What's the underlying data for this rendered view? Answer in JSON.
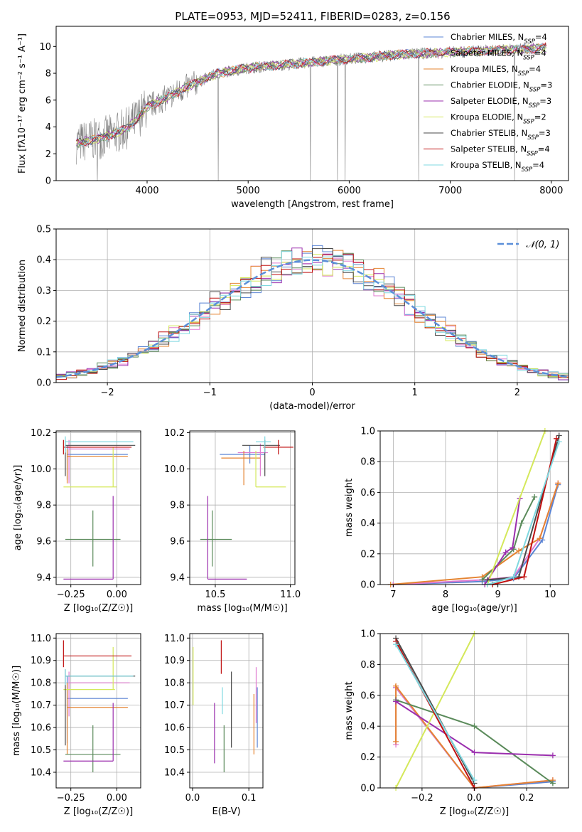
{
  "chart_data": [
    {
      "type": "line",
      "id": "spectrum",
      "title": "PLATE=0953, MJD=52411, FIBERID=0283, z=0.156",
      "xlabel": "wavelength [Angstrom, rest frame]",
      "ylabel": "Flux [fλ10⁻¹⁷ erg cm⁻² s⁻¹ A⁻¹]",
      "xlim": [
        3100,
        8170
      ],
      "ylim": [
        0,
        11.5
      ],
      "xticks": [
        4000,
        5000,
        6000,
        7000,
        8000
      ],
      "yticks": [
        0,
        2,
        4,
        6,
        8,
        10
      ],
      "legend_position": "right",
      "data_color": "#808080",
      "data_anchors": [
        [
          3300,
          2.8
        ],
        [
          3500,
          3.1
        ],
        [
          3650,
          3.4
        ],
        [
          3800,
          3.9
        ],
        [
          3900,
          4.6
        ],
        [
          4000,
          5.5
        ],
        [
          4200,
          6.2
        ],
        [
          4400,
          7.0
        ],
        [
          4700,
          8.0
        ],
        [
          5000,
          8.4
        ],
        [
          5300,
          8.6
        ],
        [
          5600,
          8.8
        ],
        [
          5900,
          9.0
        ],
        [
          6200,
          9.2
        ],
        [
          6500,
          9.4
        ],
        [
          6800,
          9.5
        ],
        [
          7100,
          9.6
        ],
        [
          7400,
          9.7
        ],
        [
          7700,
          9.8
        ],
        [
          7950,
          9.9
        ]
      ],
      "series": [
        {
          "name": "Chabrier MILES, N",
          "sub": "SSP",
          "suffix": "=4",
          "color": "#5b84d4"
        },
        {
          "name": "Salpeter MILES, N",
          "sub": "SSP",
          "suffix": "=4",
          "color": "#e07bd0"
        },
        {
          "name": "Kroupa MILES, N",
          "sub": "SSP",
          "suffix": "=4",
          "color": "#e58432"
        },
        {
          "name": "Chabrier ELODIE, N",
          "sub": "SSP",
          "suffix": "=3",
          "color": "#5a8a5a"
        },
        {
          "name": "Salpeter ELODIE, N",
          "sub": "SSP",
          "suffix": "=3",
          "color": "#9b2fae"
        },
        {
          "name": "Kroupa ELODIE, N",
          "sub": "SSP",
          "suffix": "=2",
          "color": "#d4e85a"
        },
        {
          "name": "Chabrier STELIB, N",
          "sub": "SSP",
          "suffix": "=3",
          "color": "#4a4a4a"
        },
        {
          "name": "Salpeter STELIB, N",
          "sub": "SSP",
          "suffix": "=4",
          "color": "#c01010"
        },
        {
          "name": "Kroupa STELIB, N",
          "sub": "SSP",
          "suffix": "=4",
          "color": "#7fd8e0"
        }
      ]
    },
    {
      "type": "histogram",
      "id": "residuals",
      "xlabel": "(data-model)/error",
      "ylabel": "Normed distribution",
      "xlim": [
        -2.5,
        2.5
      ],
      "ylim": [
        0,
        0.5
      ],
      "xticks": [
        -2,
        -1,
        0,
        1,
        2
      ],
      "yticks": [
        0.0,
        0.1,
        0.2,
        0.3,
        0.4,
        0.5
      ],
      "bin_width": 0.1,
      "legend": "𝒩(0, 1)",
      "normal_color": "#5b8fd9"
    },
    {
      "type": "errorbar",
      "id": "age-vs-z",
      "xlabel": "Z [log₁₀(Z/Z☉)]",
      "ylabel": "age  [log₁₀(age/yr)]",
      "xlim": [
        -0.33,
        0.13
      ],
      "ylim": [
        9.36,
        10.21
      ],
      "xticks": [
        -0.25,
        0.0
      ],
      "yticks": [
        9.4,
        9.6,
        9.8,
        10.0,
        10.2
      ],
      "points": [
        {
          "x": -0.27,
          "y": 10.08,
          "xerr": [
            0,
            0.33
          ],
          "yerr": [
            0.14,
            0.05
          ],
          "color": "#5b84d4"
        },
        {
          "x": -0.26,
          "y": 10.11,
          "xerr": [
            0,
            0.33
          ],
          "yerr": [
            0.19,
            0.05
          ],
          "color": "#e07bd0"
        },
        {
          "x": -0.27,
          "y": 10.07,
          "xerr": [
            0,
            0.33
          ],
          "yerr": [
            0.15,
            0.04
          ],
          "color": "#e58432"
        },
        {
          "x": -0.13,
          "y": 9.61,
          "xerr": [
            0.15,
            0.15
          ],
          "yerr": [
            0.15,
            0.16
          ],
          "color": "#5a8a5a"
        },
        {
          "x": -0.02,
          "y": 9.39,
          "xerr": [
            0.27,
            0
          ],
          "yerr": [
            0,
            0.46
          ],
          "color": "#9b2fae"
        },
        {
          "x": -0.02,
          "y": 9.9,
          "xerr": [
            0.27,
            0.02
          ],
          "yerr": [
            0,
            0.22
          ],
          "color": "#d4e85a"
        },
        {
          "x": -0.28,
          "y": 10.13,
          "xerr": [
            0,
            0.38
          ],
          "yerr": [
            0.17,
            0.03
          ],
          "color": "#4a4a4a"
        },
        {
          "x": -0.29,
          "y": 10.12,
          "xerr": [
            0,
            0.37
          ],
          "yerr": [
            0.04,
            0.04
          ],
          "color": "#c01010"
        },
        {
          "x": -0.28,
          "y": 10.15,
          "xerr": [
            0,
            0.37
          ],
          "yerr": [
            0.06,
            0.03
          ],
          "color": "#7fd8e0"
        }
      ]
    },
    {
      "type": "errorbar",
      "id": "age-vs-mass",
      "xlabel": "mass [log₁₀(M/M☉)]",
      "ylabel": "",
      "xlim": [
        10.33,
        11.03
      ],
      "ylim": [
        9.36,
        10.21
      ],
      "xticks": [
        10.5,
        11.0
      ],
      "yticks": [
        9.4,
        9.6,
        9.8,
        10.0,
        10.2
      ],
      "points": [
        {
          "x": 10.73,
          "y": 10.08,
          "xerr": [
            0.2,
            0.1
          ],
          "yerr": [
            0.05,
            0.05
          ],
          "color": "#5b84d4"
        },
        {
          "x": 10.8,
          "y": 10.09,
          "xerr": [
            0.15,
            0.05
          ],
          "yerr": [
            0.13,
            0.05
          ],
          "color": "#e07bd0"
        },
        {
          "x": 10.69,
          "y": 10.06,
          "xerr": [
            0.15,
            0.11
          ],
          "yerr": [
            0.15,
            0.04
          ],
          "color": "#e58432"
        },
        {
          "x": 10.48,
          "y": 9.61,
          "xerr": [
            0.08,
            0.13
          ],
          "yerr": [
            0.15,
            0.16
          ],
          "color": "#5a8a5a"
        },
        {
          "x": 10.45,
          "y": 9.39,
          "xerr": [
            0,
            0.26
          ],
          "yerr": [
            0,
            0.46
          ],
          "color": "#9b2fae"
        },
        {
          "x": 10.77,
          "y": 9.9,
          "xerr": [
            0,
            0.2
          ],
          "yerr": [
            0,
            0.2
          ],
          "color": "#d4e85a"
        },
        {
          "x": 10.83,
          "y": 10.13,
          "xerr": [
            0.15,
            0.1
          ],
          "yerr": [
            0.17,
            0.03
          ],
          "color": "#4a4a4a"
        },
        {
          "x": 10.92,
          "y": 10.12,
          "xerr": [
            0.1,
            0.1
          ],
          "yerr": [
            0.04,
            0.04
          ],
          "color": "#c01010"
        },
        {
          "x": 10.83,
          "y": 10.15,
          "xerr": [
            0.06,
            0.04
          ],
          "yerr": [
            0.06,
            0.03
          ],
          "color": "#7fd8e0"
        }
      ]
    },
    {
      "type": "line",
      "id": "mass-weight-vs-age",
      "xlabel": "age  [log₁₀(age/yr)]",
      "ylabel": "mass weight",
      "xlim": [
        6.75,
        10.35
      ],
      "ylim": [
        0,
        1.0
      ],
      "xticks": [
        7,
        8,
        9,
        10
      ],
      "yticks": [
        0.0,
        0.2,
        0.4,
        0.6,
        0.8,
        1.0
      ],
      "series": [
        {
          "color": "#5b84d4",
          "x": [
            7.0,
            8.7,
            9.3,
            9.85,
            10.15
          ],
          "y": [
            0.0,
            0.02,
            0.04,
            0.29,
            0.65
          ]
        },
        {
          "color": "#e07bd0",
          "x": [
            7.0,
            8.7,
            9.3,
            9.8,
            10.15
          ],
          "y": [
            0.0,
            0.03,
            0.05,
            0.3,
            0.66
          ]
        },
        {
          "color": "#e58432",
          "x": [
            6.95,
            8.7,
            9.4,
            9.8,
            10.15
          ],
          "y": [
            0.0,
            0.05,
            0.22,
            0.3,
            0.66
          ]
        },
        {
          "color": "#5a8a5a",
          "x": [
            8.7,
            9.3,
            9.45,
            9.7
          ],
          "y": [
            0.03,
            0.23,
            0.4,
            0.57
          ]
        },
        {
          "color": "#9b2fae",
          "x": [
            8.75,
            9.15,
            9.28,
            9.42
          ],
          "y": [
            0.0,
            0.21,
            0.24,
            0.56
          ]
        },
        {
          "color": "#d4e85a",
          "x": [
            8.8,
            9.9
          ],
          "y": [
            0.0,
            1.0
          ]
        },
        {
          "color": "#4a4a4a",
          "x": [
            8.8,
            9.4,
            10.17
          ],
          "y": [
            0.03,
            0.05,
            0.97
          ]
        },
        {
          "color": "#c01010",
          "x": [
            8.9,
            9.5,
            10.12
          ],
          "y": [
            0.0,
            0.05,
            0.95
          ]
        },
        {
          "color": "#7fd8e0",
          "x": [
            8.8,
            9.3,
            10.17
          ],
          "y": [
            0.0,
            0.05,
            0.93
          ]
        }
      ]
    },
    {
      "type": "errorbar",
      "id": "mass-vs-z",
      "xlabel": "Z [log₁₀(Z/Z☉)]",
      "ylabel": "mass [log₁₀(M/M☉)]",
      "xlim": [
        -0.33,
        0.13
      ],
      "ylim": [
        10.33,
        11.02
      ],
      "xticks": [
        -0.25,
        0.0
      ],
      "yticks": [
        10.4,
        10.5,
        10.6,
        10.7,
        10.8,
        10.9,
        11.0
      ],
      "points": [
        {
          "x": -0.27,
          "y": 10.73,
          "xerr": [
            0,
            0.33
          ],
          "yerr": [
            0.2,
            0.1
          ],
          "color": "#5b84d4"
        },
        {
          "x": -0.26,
          "y": 10.8,
          "xerr": [
            0,
            0.33
          ],
          "yerr": [
            0.15,
            0.05
          ],
          "color": "#e07bd0"
        },
        {
          "x": -0.27,
          "y": 10.69,
          "xerr": [
            0,
            0.33
          ],
          "yerr": [
            0.21,
            0.11
          ],
          "color": "#e58432"
        },
        {
          "x": -0.13,
          "y": 10.48,
          "xerr": [
            0.15,
            0.15
          ],
          "yerr": [
            0.08,
            0.13
          ],
          "color": "#5a8a5a"
        },
        {
          "x": -0.02,
          "y": 10.45,
          "xerr": [
            0.27,
            0
          ],
          "yerr": [
            0,
            0.26
          ],
          "color": "#9b2fae"
        },
        {
          "x": -0.02,
          "y": 10.77,
          "xerr": [
            0.27,
            0.01
          ],
          "yerr": [
            0,
            0.19
          ],
          "color": "#d4e85a"
        },
        {
          "x": -0.28,
          "y": 10.83,
          "xerr": [
            0,
            0.38
          ],
          "yerr": [
            0.31,
            0.03
          ],
          "color": "#4a4a4a"
        },
        {
          "x": -0.29,
          "y": 10.92,
          "xerr": [
            0,
            0.37
          ],
          "yerr": [
            0.05,
            0.07
          ],
          "color": "#c01010"
        },
        {
          "x": -0.28,
          "y": 10.83,
          "xerr": [
            0,
            0.37
          ],
          "yerr": [
            0.04,
            0.03
          ],
          "color": "#7fd8e0"
        }
      ]
    },
    {
      "type": "errorbar",
      "id": "mass-vs-ebv",
      "xlabel": "E(B-V)",
      "ylabel": "",
      "xlim": [
        -0.005,
        0.125
      ],
      "ylim": [
        10.33,
        11.02
      ],
      "xticks": [
        0.0,
        0.1
      ],
      "yticks": [
        10.4,
        10.5,
        10.6,
        10.7,
        10.8,
        10.9,
        11.0
      ],
      "points": [
        {
          "x": 0.115,
          "y": 10.73,
          "xerr": [
            0,
            0
          ],
          "yerr": [
            0.22,
            0.05
          ],
          "color": "#5b84d4"
        },
        {
          "x": 0.113,
          "y": 10.8,
          "xerr": [
            0,
            0
          ],
          "yerr": [
            0.18,
            0.07
          ],
          "color": "#e07bd0"
        },
        {
          "x": 0.109,
          "y": 10.69,
          "xerr": [
            0,
            0
          ],
          "yerr": [
            0.21,
            0.06
          ],
          "color": "#e58432"
        },
        {
          "x": 0.056,
          "y": 10.48,
          "xerr": [
            0,
            0
          ],
          "yerr": [
            0.08,
            0.13
          ],
          "color": "#5a8a5a"
        },
        {
          "x": 0.039,
          "y": 10.58,
          "xerr": [
            0,
            0
          ],
          "yerr": [
            0.14,
            0.13
          ],
          "color": "#9b2fae"
        },
        {
          "x": 0.001,
          "y": 10.82,
          "xerr": [
            0,
            0
          ],
          "yerr": [
            0.12,
            0.14
          ],
          "color": "#d4e85a"
        },
        {
          "x": 0.069,
          "y": 10.68,
          "xerr": [
            0,
            0
          ],
          "yerr": [
            0.17,
            0.17
          ],
          "color": "#4a4a4a"
        },
        {
          "x": 0.051,
          "y": 10.92,
          "xerr": [
            0,
            0
          ],
          "yerr": [
            0.08,
            0.07
          ],
          "color": "#c01010"
        },
        {
          "x": 0.053,
          "y": 10.73,
          "xerr": [
            0,
            0
          ],
          "yerr": [
            0.07,
            0.05
          ],
          "color": "#7fd8e0"
        }
      ]
    },
    {
      "type": "line",
      "id": "mass-weight-vs-z",
      "xlabel": "Z [log₁₀(Z/Z☉)]",
      "ylabel": "mass weight",
      "xlim": [
        -0.36,
        0.36
      ],
      "ylim": [
        0,
        1.0
      ],
      "xticks": [
        -0.2,
        0.0,
        0.2
      ],
      "yticks": [
        0.0,
        0.2,
        0.4,
        0.6,
        0.8,
        1.0
      ],
      "series": [
        {
          "color": "#5b84d4",
          "x": [
            -0.3,
            0.0,
            0.3
          ],
          "y": [
            0.65,
            0.0,
            0.04
          ]
        },
        {
          "color": "#e07bd0",
          "x": [
            -0.3,
            -0.3,
            0.0,
            0.3
          ],
          "y": [
            0.28,
            0.65,
            0.0,
            0.05
          ]
        },
        {
          "color": "#e58432",
          "x": [
            -0.3,
            -0.3,
            0.0,
            0.3
          ],
          "y": [
            0.3,
            0.66,
            0.0,
            0.05
          ]
        },
        {
          "color": "#5a8a5a",
          "x": [
            -0.3,
            0.0,
            0.3
          ],
          "y": [
            0.57,
            0.4,
            0.03
          ]
        },
        {
          "color": "#9b2fae",
          "x": [
            -0.3,
            0.0,
            0.3
          ],
          "y": [
            0.56,
            0.23,
            0.21
          ]
        },
        {
          "color": "#d4e85a",
          "x": [
            -0.3,
            0.0
          ],
          "y": [
            0.0,
            1.0
          ]
        },
        {
          "color": "#4a4a4a",
          "x": [
            -0.3,
            0.0
          ],
          "y": [
            0.97,
            0.03
          ]
        },
        {
          "color": "#c01010",
          "x": [
            -0.3,
            0.0
          ],
          "y": [
            0.95,
            0.0
          ]
        },
        {
          "color": "#7fd8e0",
          "x": [
            -0.3,
            0.0
          ],
          "y": [
            0.93,
            0.05
          ]
        }
      ]
    }
  ]
}
